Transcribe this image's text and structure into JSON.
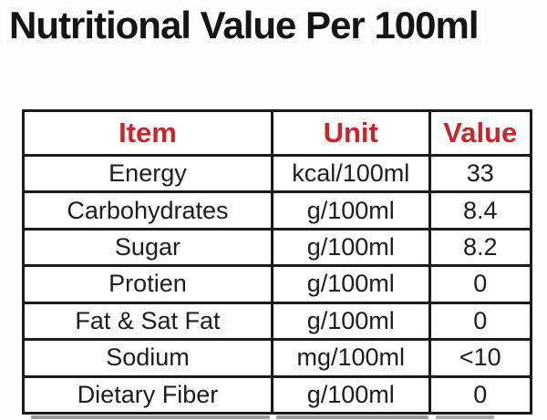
{
  "page": {
    "title": "Nutritional Value Per 100ml"
  },
  "colors": {
    "background": "#fdfdfd",
    "title_text": "#151515",
    "header_text": "#cc2529",
    "body_text": "#1d1d1d",
    "table_border": "#1a1a1a",
    "next_table_edge": "#9b9b9b"
  },
  "chart_data": {
    "type": "table",
    "title": "Nutritional Value Per 100ml",
    "columns": [
      "Item",
      "Unit",
      "Value"
    ],
    "rows": [
      [
        "Energy",
        "kcal/100ml",
        "33"
      ],
      [
        "Carbohydrates",
        "g/100ml",
        "8.4"
      ],
      [
        "Sugar",
        "g/100ml",
        "8.2"
      ],
      [
        "Protien",
        "g/100ml",
        "0"
      ],
      [
        "Fat & Sat Fat",
        "g/100ml",
        "0"
      ],
      [
        "Sodium",
        "mg/100ml",
        "<10"
      ],
      [
        "Dietary Fiber",
        "g/100ml",
        "0"
      ]
    ]
  }
}
